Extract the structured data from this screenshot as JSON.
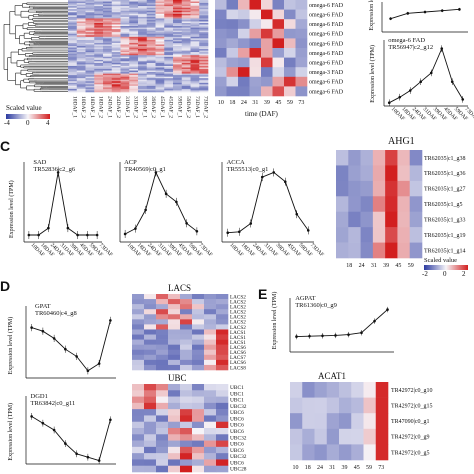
{
  "panel_letters": {
    "C": "C",
    "D": "D",
    "E": "E"
  },
  "colors": {
    "low": "#2b3aa0",
    "mid": "#f6f4f8",
    "high": "#d21f1f",
    "line": "#111111"
  },
  "panelA": {
    "legend_title": "Scaled value",
    "legend_ticks": [
      "-4",
      "0",
      "4"
    ],
    "x_labels": [
      "10DAF_1",
      "10DAF_2",
      "18DAF_1",
      "18DAF_2",
      "24DAF_1",
      "24DAF_2",
      "31DAF_1",
      "31DAF_2",
      "39DAF_1",
      "39DAF_2",
      "45DAF_1",
      "45DAF_2",
      "59DAF_1",
      "59DAF_2",
      "73DAF_1",
      "73DAF_2"
    ]
  },
  "panelB": {
    "row_labels": [
      "omega-6 FAD",
      "omega-6 FAD",
      "omega-6 FAD",
      "omega-6 FAD",
      "omega-6 FAD",
      "omega-6 FAD",
      "omega-6 FAD",
      "omega-3 FAD",
      "omega-6 FAD",
      "omega-6 FAD"
    ],
    "x_ticks": [
      "10",
      "18",
      "24",
      "31",
      "39",
      "45",
      "59",
      "73"
    ],
    "x_title": "time (DAF)"
  },
  "charts": {
    "top": {
      "ylabel": "Expression level",
      "title_line1": "",
      "title_line2": ""
    },
    "omega": {
      "ylabel": "Expression level (TPM)",
      "title_line1": "omega-6 FAD",
      "title_line2": "TR56947|c2_g12"
    },
    "sad": {
      "ylabel": "Expression level (TPM)",
      "title_line1": "SAD",
      "title_line2": "TR52836|c2_g6"
    },
    "acp": {
      "ylabel": "",
      "title_line1": "ACP",
      "title_line2": "TR40569|c0_g1"
    },
    "acca": {
      "ylabel": "",
      "title_line1": "ACCA",
      "title_line2": "TR55513|c0_g1"
    },
    "gpat": {
      "ylabel": "Expression level (TPM)",
      "title_line1": "GPAT",
      "title_line2": "TR60460|c4_g8"
    },
    "dgd1": {
      "ylabel": "Expression level (TPM)",
      "title_line1": "DGD1",
      "title_line2": "TR63842|c0_g11"
    },
    "agpat": {
      "ylabel": "Expression level (TPM)",
      "title_line1": "AGPAT",
      "title_line2": "TR61360|c0_g9"
    }
  },
  "daf_labels": [
    "10DAF",
    "18DAF",
    "24DAF",
    "31DAF",
    "39DAF",
    "45DAF",
    "59DAF",
    "73DAF"
  ],
  "ahg1": {
    "title": "AHG1",
    "row_labels": [
      "TR62035|c1_g38",
      "TR62035|c1_g36",
      "TR62035|c1_g27",
      "TR62035|c1_g5",
      "TR62035|c1_g33",
      "TR62035|c1_g19",
      "TR62035|c1_g14"
    ],
    "x_ticks": [
      "18",
      "24",
      "31",
      "39",
      "45",
      "59"
    ],
    "legend_title": "Scaled value",
    "legend_ticks": [
      "-2",
      "0",
      "2"
    ]
  },
  "lacs": {
    "title": "LACS",
    "row_labels": [
      "LACS2",
      "LACS2",
      "LACS2",
      "LACS2",
      "LACS2",
      "LACS2",
      "LACS2",
      "LACS1",
      "LACS1",
      "LACS1",
      "LACS6",
      "LACS6",
      "LACS7",
      "LACS6",
      "LACS8"
    ]
  },
  "ubc": {
    "title": "UBC",
    "row_labels": [
      "UBC1",
      "UBC1",
      "UBC1",
      "UBC32",
      "UBC6",
      "UBC6",
      "UBC6",
      "UBC6",
      "UBC32",
      "UBC6",
      "UBC6",
      "UBC32",
      "UBC6",
      "UBC28"
    ]
  },
  "acat1": {
    "title": "ACAT1",
    "row_labels": [
      "TR42972|c0_g10",
      "TR42972|c0_g15",
      "TR47090|c0_g1",
      "TR42972|c0_g9",
      "TR42972|c0_g5"
    ],
    "x_ticks": [
      "10",
      "18",
      "24",
      "31",
      "39",
      "45",
      "59",
      "73"
    ]
  },
  "chart_data": [
    {
      "type": "line",
      "title": "omega-6 FAD TR56947|c2_g12",
      "categories": [
        "10DAF",
        "18DAF",
        "24DAF",
        "31DAF",
        "39DAF",
        "45DAF",
        "59DAF",
        "73DAF"
      ],
      "values": [
        3,
        8,
        14,
        22,
        30,
        52,
        22,
        6
      ],
      "ylabel": "Expression level (TPM)"
    },
    {
      "type": "line",
      "title": "SAD TR52836|c2_g6",
      "categories": [
        "10DAF",
        "18DAF",
        "24DAF",
        "31DAF",
        "39DAF",
        "45DAF",
        "59DAF",
        "73DAF"
      ],
      "values": [
        1,
        1,
        2,
        10,
        2,
        1,
        1,
        1
      ],
      "ylabel": "Expression level (TPM)"
    },
    {
      "type": "line",
      "title": "ACP TR40569|c0_g1",
      "categories": [
        "10DAF",
        "18DAF",
        "24DAF",
        "31DAF",
        "39DAF",
        "45DAF",
        "59DAF",
        "73DAF"
      ],
      "values": [
        0.3,
        0.5,
        1.2,
        2.6,
        1.8,
        1.5,
        0.7,
        0.4
      ]
    },
    {
      "type": "line",
      "title": "ACCA TR55513|c0_g1",
      "categories": [
        "10DAF",
        "18DAF",
        "24DAF",
        "31DAF",
        "39DAF",
        "45DAF",
        "59DAF",
        "73DAF"
      ],
      "values": [
        20,
        22,
        40,
        140,
        150,
        130,
        60,
        25
      ]
    },
    {
      "type": "line",
      "title": "GPAT TR60460|c4_g8",
      "categories": [
        "10DAF",
        "18DAF",
        "24DAF",
        "31DAF",
        "39DAF",
        "45DAF",
        "59DAF",
        "73DAF"
      ],
      "values": [
        7,
        6.5,
        5.5,
        4,
        3,
        1,
        2,
        8
      ]
    },
    {
      "type": "line",
      "title": "DGD1 TR63842|c0_g11",
      "categories": [
        "10DAF",
        "18DAF",
        "24DAF",
        "31DAF",
        "39DAF",
        "45DAF",
        "59DAF",
        "73DAF"
      ],
      "values": [
        14,
        12,
        10,
        6,
        3,
        2,
        1,
        13
      ]
    },
    {
      "type": "line",
      "title": "AGPAT TR61360|c0_g9",
      "categories": [
        "10DAF",
        "18DAF",
        "24DAF",
        "31DAF",
        "39DAF",
        "45DAF",
        "59DAF",
        "73DAF"
      ],
      "values": [
        4,
        4.1,
        4.2,
        4.3,
        4.5,
        5,
        8,
        11
      ]
    }
  ]
}
